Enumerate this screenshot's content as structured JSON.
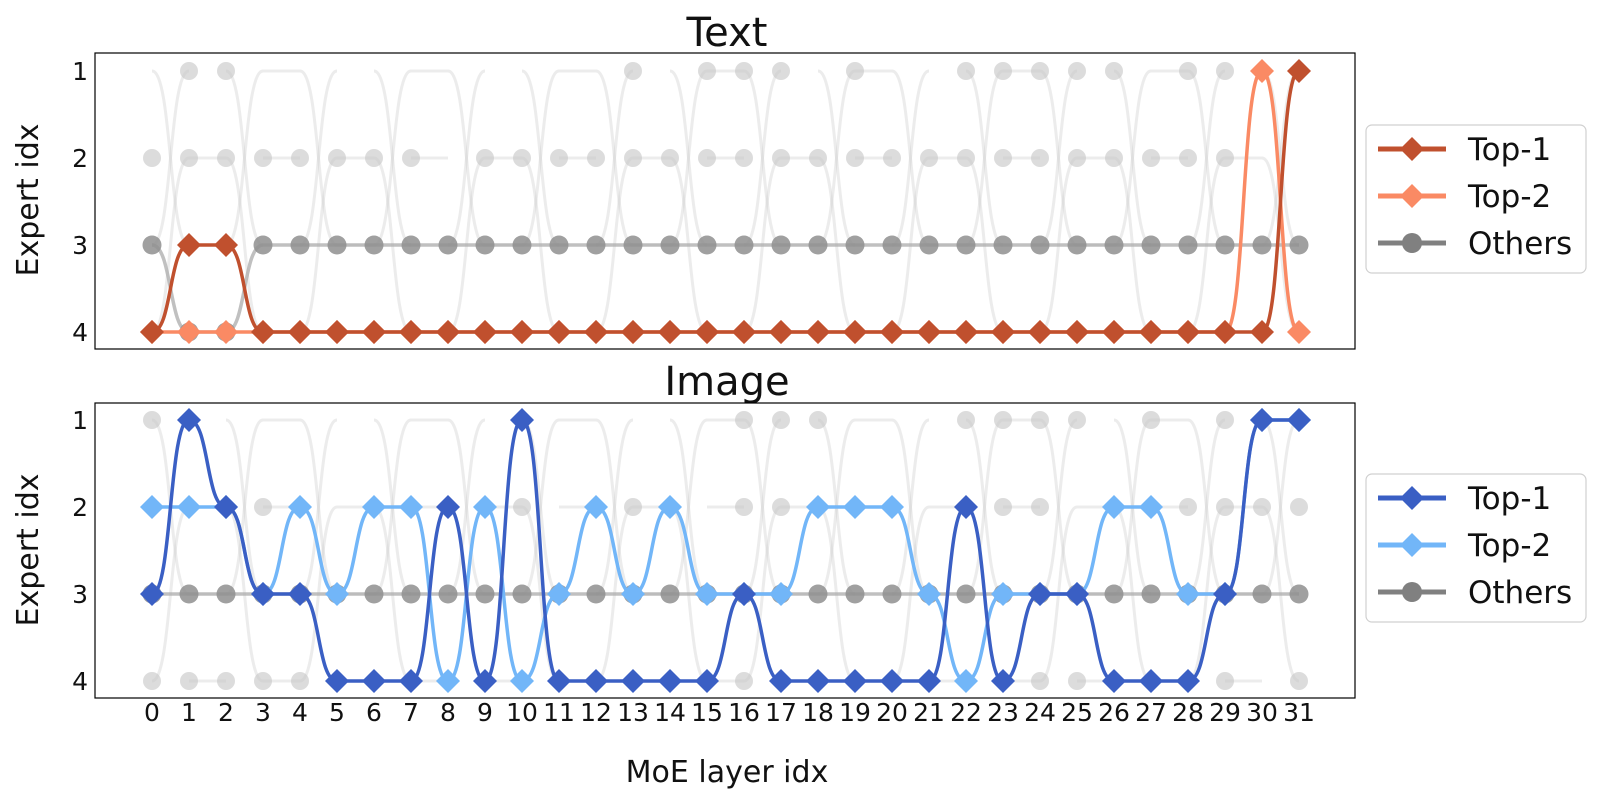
{
  "figure": {
    "xlabel": "MoE layer idx",
    "ylabel": "Expert idx"
  },
  "chart_data": [
    {
      "type": "line",
      "title": "Text",
      "ylabel": "Expert idx",
      "x": [
        0,
        1,
        2,
        3,
        4,
        5,
        6,
        7,
        8,
        9,
        10,
        11,
        12,
        13,
        14,
        15,
        16,
        17,
        18,
        19,
        20,
        21,
        22,
        23,
        24,
        25,
        26,
        27,
        28,
        29,
        30,
        31
      ],
      "y_ticks": [
        1,
        2,
        3,
        4
      ],
      "y_inverted": true,
      "legend_position": "center-right, outside",
      "series": [
        {
          "name": "Top-1",
          "marker": "diamond",
          "color": "#c0502e",
          "values": [
            4,
            3,
            3,
            4,
            4,
            4,
            4,
            4,
            4,
            4,
            4,
            4,
            4,
            4,
            4,
            4,
            4,
            4,
            4,
            4,
            4,
            4,
            4,
            4,
            4,
            4,
            4,
            4,
            4,
            4,
            4,
            1
          ]
        },
        {
          "name": "Top-2",
          "marker": "diamond",
          "color": "#fa8a64",
          "values": [
            4,
            4,
            4,
            4,
            4,
            4,
            4,
            4,
            4,
            4,
            4,
            4,
            4,
            4,
            4,
            4,
            4,
            4,
            4,
            4,
            4,
            4,
            4,
            4,
            4,
            4,
            4,
            4,
            4,
            4,
            1,
            4
          ]
        },
        {
          "name": "Others",
          "marker": "circle",
          "color": "#808080",
          "values": [
            3,
            4,
            4,
            3,
            3,
            3,
            3,
            3,
            3,
            3,
            3,
            3,
            3,
            3,
            3,
            3,
            3,
            3,
            3,
            3,
            3,
            3,
            3,
            3,
            3,
            3,
            3,
            3,
            3,
            3,
            3,
            3
          ]
        }
      ],
      "faint_points": [
        [
          0,
          2
        ],
        [
          1,
          1
        ],
        [
          1,
          2
        ],
        [
          2,
          1
        ],
        [
          2,
          2
        ],
        [
          3,
          2
        ],
        [
          4,
          2
        ],
        [
          5,
          2
        ],
        [
          6,
          2
        ],
        [
          7,
          2
        ],
        [
          9,
          2
        ],
        [
          10,
          2
        ],
        [
          11,
          2
        ],
        [
          12,
          2
        ],
        [
          13,
          1
        ],
        [
          13,
          2
        ],
        [
          14,
          2
        ],
        [
          15,
          1
        ],
        [
          15,
          2
        ],
        [
          16,
          1
        ],
        [
          16,
          2
        ],
        [
          17,
          1
        ],
        [
          17,
          2
        ],
        [
          18,
          2
        ],
        [
          19,
          1
        ],
        [
          19,
          2
        ],
        [
          20,
          2
        ],
        [
          21,
          2
        ],
        [
          22,
          1
        ],
        [
          22,
          2
        ],
        [
          23,
          1
        ],
        [
          23,
          2
        ],
        [
          24,
          1
        ],
        [
          24,
          2
        ],
        [
          25,
          1
        ],
        [
          25,
          2
        ],
        [
          26,
          1
        ],
        [
          26,
          2
        ],
        [
          27,
          2
        ],
        [
          28,
          1
        ],
        [
          28,
          2
        ],
        [
          29,
          1
        ],
        [
          29,
          2
        ]
      ]
    },
    {
      "type": "line",
      "title": "Image",
      "ylabel": "Expert idx",
      "xlabel": "MoE layer idx",
      "x": [
        0,
        1,
        2,
        3,
        4,
        5,
        6,
        7,
        8,
        9,
        10,
        11,
        12,
        13,
        14,
        15,
        16,
        17,
        18,
        19,
        20,
        21,
        22,
        23,
        24,
        25,
        26,
        27,
        28,
        29,
        30,
        31
      ],
      "y_ticks": [
        1,
        2,
        3,
        4
      ],
      "y_inverted": true,
      "legend_position": "center-right, outside",
      "series": [
        {
          "name": "Top-1",
          "marker": "diamond",
          "color": "#3a5fc4",
          "values": [
            3,
            1,
            2,
            3,
            3,
            4,
            4,
            4,
            2,
            4,
            1,
            4,
            4,
            4,
            4,
            4,
            3,
            4,
            4,
            4,
            4,
            4,
            2,
            4,
            3,
            3,
            4,
            4,
            4,
            3,
            1,
            1
          ]
        },
        {
          "name": "Top-2",
          "marker": "diamond",
          "color": "#72b6f8",
          "values": [
            2,
            2,
            2,
            3,
            2,
            3,
            2,
            2,
            4,
            2,
            4,
            3,
            2,
            3,
            2,
            3,
            3,
            3,
            2,
            2,
            2,
            3,
            4,
            3,
            3,
            3,
            2,
            2,
            3,
            3,
            1,
            1
          ]
        },
        {
          "name": "Others",
          "marker": "circle",
          "color": "#808080",
          "values": [
            3,
            3,
            3,
            3,
            3,
            3,
            3,
            3,
            3,
            3,
            3,
            3,
            3,
            3,
            3,
            3,
            3,
            3,
            3,
            3,
            3,
            3,
            3,
            3,
            3,
            3,
            3,
            3,
            3,
            3,
            3,
            3
          ]
        }
      ],
      "faint_points": [
        [
          0,
          1
        ],
        [
          0,
          4
        ],
        [
          1,
          4
        ],
        [
          2,
          4
        ],
        [
          3,
          2
        ],
        [
          3,
          4
        ],
        [
          4,
          4
        ],
        [
          10,
          2
        ],
        [
          13,
          2
        ],
        [
          16,
          1
        ],
        [
          16,
          2
        ],
        [
          16,
          4
        ],
        [
          17,
          1
        ],
        [
          17,
          2
        ],
        [
          18,
          1
        ],
        [
          22,
          1
        ],
        [
          23,
          1
        ],
        [
          23,
          2
        ],
        [
          24,
          1
        ],
        [
          24,
          2
        ],
        [
          24,
          4
        ],
        [
          25,
          1
        ],
        [
          25,
          4
        ],
        [
          27,
          1
        ],
        [
          28,
          2
        ],
        [
          29,
          1
        ],
        [
          29,
          2
        ],
        [
          29,
          4
        ],
        [
          30,
          2
        ],
        [
          31,
          2
        ],
        [
          31,
          4
        ]
      ]
    }
  ]
}
